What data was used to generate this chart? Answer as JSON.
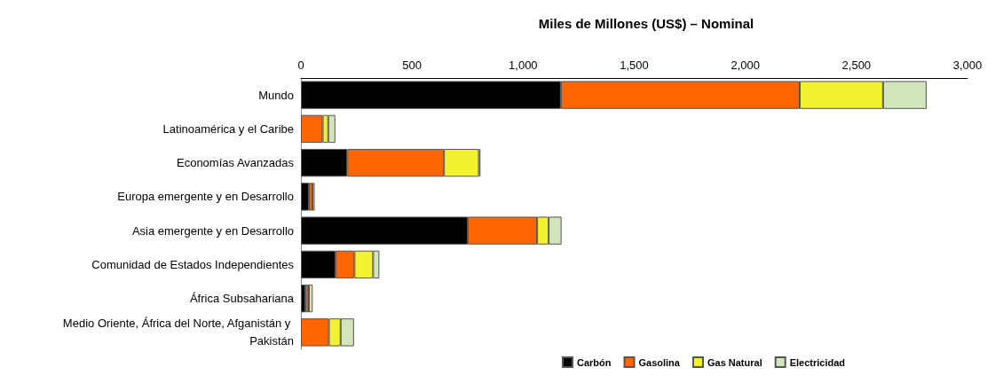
{
  "chart_data": {
    "type": "bar",
    "orientation": "horizontal",
    "stacked": true,
    "title": "Miles de Millones (US$) – Nominal",
    "categories": [
      "Mundo",
      "Latinoamérica y el Caribe",
      "Economías Avanzadas",
      "Europa emergente y en Desarrollo",
      "Asia emergente y en Desarrollo",
      "Comunidad de Estados Independientes",
      "África Subsahariana",
      "Medio Oriente, África del Norte, Afganistán y Pakistán"
    ],
    "series": [
      {
        "name": "Carbón",
        "color": "#000000",
        "values": [
          1170,
          null,
          209,
          36,
          751,
          156,
          20,
          null
        ]
      },
      {
        "name": "Gasolina",
        "color": "#ff6600",
        "values": [
          1075,
          98,
          435,
          16,
          312,
          85,
          13,
          126
        ]
      },
      {
        "name": "Gas Natural",
        "color": "#f2f233",
        "values": [
          375,
          25,
          157,
          10,
          52,
          84,
          3,
          53
        ]
      },
      {
        "name": "Electricidad",
        "color": "#d3e5bc",
        "values": [
          196,
          32,
          7,
          null,
          58,
          28,
          17,
          60
        ]
      }
    ],
    "xlim": [
      0,
      3000
    ],
    "xticks": [
      0,
      500,
      {
        "value": 1000,
        "label": "1,000"
      },
      {
        "value": 1500,
        "label": "1,500"
      },
      {
        "value": 2000,
        "label": "2,000"
      },
      {
        "value": 2500,
        "label": "2,500"
      },
      {
        "value": 3000,
        "label": "3,000"
      }
    ],
    "grid": false,
    "legend": "bottom"
  }
}
